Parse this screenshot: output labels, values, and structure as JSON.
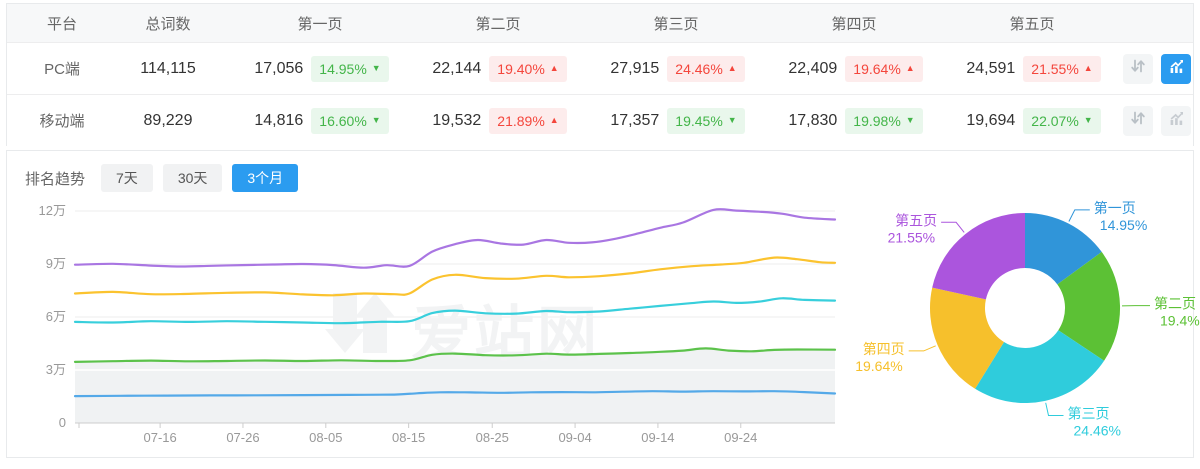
{
  "accent_color": "#2b9cf0",
  "table": {
    "columns": [
      "平台",
      "总词数",
      "第一页",
      "第二页",
      "第三页",
      "第四页",
      "第五页"
    ],
    "rows": [
      {
        "platform": "PC端",
        "total": "114,115",
        "selected": true,
        "chart_active": true,
        "pages": [
          {
            "count": "17,056",
            "pct": "14.95%",
            "dir": "down"
          },
          {
            "count": "22,144",
            "pct": "19.40%",
            "dir": "up"
          },
          {
            "count": "27,915",
            "pct": "24.46%",
            "dir": "up"
          },
          {
            "count": "22,409",
            "pct": "19.64%",
            "dir": "up"
          },
          {
            "count": "24,591",
            "pct": "21.55%",
            "dir": "up"
          }
        ]
      },
      {
        "platform": "移动端",
        "total": "89,229",
        "selected": false,
        "chart_active": false,
        "pages": [
          {
            "count": "14,816",
            "pct": "16.60%",
            "dir": "down"
          },
          {
            "count": "19,532",
            "pct": "21.89%",
            "dir": "up"
          },
          {
            "count": "17,357",
            "pct": "19.45%",
            "dir": "down"
          },
          {
            "count": "17,830",
            "pct": "19.98%",
            "dir": "down"
          },
          {
            "count": "19,694",
            "pct": "22.07%",
            "dir": "down"
          }
        ]
      }
    ]
  },
  "trend": {
    "title": "排名趋势",
    "tabs": [
      {
        "label": "7天",
        "active": false
      },
      {
        "label": "30天",
        "active": false
      },
      {
        "label": "3个月",
        "active": true
      }
    ]
  },
  "watermark": {
    "text": "爱站网"
  },
  "chart_data": [
    {
      "type": "line",
      "stacked": true,
      "title": "排名趋势 (3个月)",
      "xlabel": "",
      "ylabel": "",
      "ylim": [
        0,
        12
      ],
      "unit": "万",
      "grid": true,
      "x_ticks": [
        {
          "label": "07-16",
          "f": 0.112
        },
        {
          "label": "07-26",
          "f": 0.221
        },
        {
          "label": "08-05",
          "f": 0.33
        },
        {
          "label": "08-15",
          "f": 0.439
        },
        {
          "label": "08-25",
          "f": 0.549
        },
        {
          "label": "09-04",
          "f": 0.658
        },
        {
          "label": "09-14",
          "f": 0.767
        },
        {
          "label": "09-24",
          "f": 0.876
        }
      ],
      "y_ticks": [
        {
          "label": "0",
          "v": 0
        },
        {
          "label": "3万",
          "v": 3
        },
        {
          "label": "6万",
          "v": 6
        },
        {
          "label": "9万",
          "v": 9
        },
        {
          "label": "12万",
          "v": 12
        }
      ],
      "series": [
        {
          "name": "第一页",
          "color": "#54a9e8",
          "points": [
            [
              0,
              1.52
            ],
            [
              0.06,
              1.54
            ],
            [
              0.12,
              1.55
            ],
            [
              0.18,
              1.56
            ],
            [
              0.24,
              1.57
            ],
            [
              0.3,
              1.58
            ],
            [
              0.36,
              1.59
            ],
            [
              0.42,
              1.61
            ],
            [
              0.45,
              1.68
            ],
            [
              0.48,
              1.74
            ],
            [
              0.52,
              1.73
            ],
            [
              0.56,
              1.71
            ],
            [
              0.6,
              1.74
            ],
            [
              0.64,
              1.75
            ],
            [
              0.68,
              1.74
            ],
            [
              0.72,
              1.77
            ],
            [
              0.76,
              1.8
            ],
            [
              0.8,
              1.78
            ],
            [
              0.84,
              1.8
            ],
            [
              0.88,
              1.79
            ],
            [
              0.92,
              1.8
            ],
            [
              0.96,
              1.75
            ],
            [
              1,
              1.67
            ]
          ]
        },
        {
          "name": "第二页",
          "color": "#5cc24b",
          "area_fill": "#f0f2f3",
          "points": [
            [
              0,
              3.46
            ],
            [
              0.05,
              3.5
            ],
            [
              0.1,
              3.53
            ],
            [
              0.15,
              3.49
            ],
            [
              0.2,
              3.51
            ],
            [
              0.25,
              3.54
            ],
            [
              0.3,
              3.51
            ],
            [
              0.35,
              3.55
            ],
            [
              0.4,
              3.51
            ],
            [
              0.44,
              3.55
            ],
            [
              0.47,
              3.86
            ],
            [
              0.5,
              3.93
            ],
            [
              0.54,
              3.84
            ],
            [
              0.58,
              3.83
            ],
            [
              0.62,
              3.92
            ],
            [
              0.65,
              3.87
            ],
            [
              0.69,
              3.91
            ],
            [
              0.73,
              3.96
            ],
            [
              0.77,
              4.03
            ],
            [
              0.8,
              4.1
            ],
            [
              0.83,
              4.22
            ],
            [
              0.86,
              4.1
            ],
            [
              0.89,
              4.06
            ],
            [
              0.92,
              4.14
            ],
            [
              0.95,
              4.16
            ],
            [
              1,
              4.15
            ]
          ]
        },
        {
          "name": "第三页",
          "color": "#38cfdc",
          "points": [
            [
              0,
              5.72
            ],
            [
              0.05,
              5.69
            ],
            [
              0.1,
              5.76
            ],
            [
              0.15,
              5.72
            ],
            [
              0.2,
              5.76
            ],
            [
              0.25,
              5.73
            ],
            [
              0.3,
              5.69
            ],
            [
              0.35,
              5.65
            ],
            [
              0.4,
              5.73
            ],
            [
              0.44,
              5.76
            ],
            [
              0.47,
              6.22
            ],
            [
              0.5,
              6.36
            ],
            [
              0.54,
              6.21
            ],
            [
              0.58,
              6.19
            ],
            [
              0.62,
              6.34
            ],
            [
              0.65,
              6.27
            ],
            [
              0.69,
              6.31
            ],
            [
              0.73,
              6.47
            ],
            [
              0.77,
              6.63
            ],
            [
              0.81,
              6.78
            ],
            [
              0.84,
              6.88
            ],
            [
              0.87,
              6.8
            ],
            [
              0.9,
              6.87
            ],
            [
              0.93,
              7.06
            ],
            [
              0.96,
              6.97
            ],
            [
              1,
              6.93
            ]
          ]
        },
        {
          "name": "第四页",
          "color": "#fbc32f",
          "points": [
            [
              0,
              7.33
            ],
            [
              0.05,
              7.42
            ],
            [
              0.1,
              7.29
            ],
            [
              0.15,
              7.31
            ],
            [
              0.2,
              7.37
            ],
            [
              0.25,
              7.39
            ],
            [
              0.3,
              7.28
            ],
            [
              0.34,
              7.23
            ],
            [
              0.38,
              7.33
            ],
            [
              0.42,
              7.29
            ],
            [
              0.44,
              7.33
            ],
            [
              0.47,
              8.12
            ],
            [
              0.5,
              8.39
            ],
            [
              0.54,
              8.2
            ],
            [
              0.58,
              8.17
            ],
            [
              0.62,
              8.33
            ],
            [
              0.65,
              8.25
            ],
            [
              0.69,
              8.31
            ],
            [
              0.73,
              8.47
            ],
            [
              0.77,
              8.7
            ],
            [
              0.81,
              8.87
            ],
            [
              0.85,
              8.97
            ],
            [
              0.88,
              9.07
            ],
            [
              0.92,
              9.36
            ],
            [
              0.95,
              9.27
            ],
            [
              0.98,
              9.1
            ],
            [
              1,
              9.07
            ]
          ]
        },
        {
          "name": "第五页",
          "color": "#a976e2",
          "points": [
            [
              0,
              8.96
            ],
            [
              0.05,
              9.01
            ],
            [
              0.1,
              8.91
            ],
            [
              0.14,
              8.86
            ],
            [
              0.18,
              8.9
            ],
            [
              0.22,
              8.94
            ],
            [
              0.26,
              8.97
            ],
            [
              0.3,
              9.0
            ],
            [
              0.34,
              8.94
            ],
            [
              0.38,
              8.79
            ],
            [
              0.41,
              8.93
            ],
            [
              0.44,
              8.89
            ],
            [
              0.47,
              9.7
            ],
            [
              0.5,
              10.12
            ],
            [
              0.53,
              10.36
            ],
            [
              0.56,
              10.16
            ],
            [
              0.59,
              10.1
            ],
            [
              0.62,
              10.36
            ],
            [
              0.65,
              10.2
            ],
            [
              0.68,
              10.22
            ],
            [
              0.71,
              10.42
            ],
            [
              0.74,
              10.72
            ],
            [
              0.77,
              11.05
            ],
            [
              0.8,
              11.35
            ],
            [
              0.84,
              12.06
            ],
            [
              0.87,
              12.02
            ],
            [
              0.9,
              11.96
            ],
            [
              0.93,
              11.85
            ],
            [
              0.96,
              11.62
            ],
            [
              1,
              11.52
            ]
          ]
        }
      ]
    },
    {
      "type": "pie",
      "donut": true,
      "inner_radius_ratio": 0.42,
      "legend_position": "outside-labels",
      "slices": [
        {
          "label": "第一页",
          "value": 14.95,
          "pct_label": "14.95%",
          "color": "#3095d9"
        },
        {
          "label": "第二页",
          "value": 19.4,
          "pct_label": "19.4%",
          "color": "#5cc135"
        },
        {
          "label": "第三页",
          "value": 24.46,
          "pct_label": "24.46%",
          "color": "#2fccdc"
        },
        {
          "label": "第四页",
          "value": 19.64,
          "pct_label": "19.64%",
          "color": "#f6c02c"
        },
        {
          "label": "第五页",
          "value": 21.55,
          "pct_label": "21.55%",
          "color": "#ab55dd"
        }
      ]
    }
  ]
}
